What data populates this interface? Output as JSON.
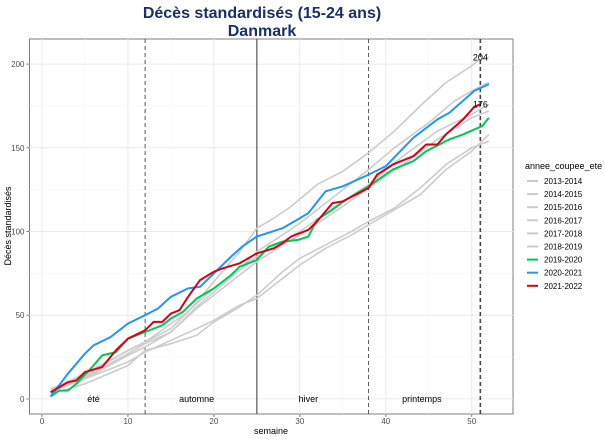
{
  "chart_data": {
    "type": "line",
    "title": "Décès standardisés (15-24 ans)",
    "subtitle": "Danmark",
    "xlabel": "semaine",
    "ylabel": "Décès standardisés",
    "xlim": [
      -1.45,
      54.8
    ],
    "ylim": [
      -9,
      215
    ],
    "xticks": [
      0,
      10,
      20,
      30,
      40,
      50
    ],
    "yticks": [
      0,
      50,
      100,
      150,
      200
    ],
    "grid": true,
    "legend": {
      "title": "annee_coupee_ete",
      "position": "right"
    },
    "vlines": [
      {
        "x": 12,
        "style": "dashed"
      },
      {
        "x": 25,
        "style": "solid"
      },
      {
        "x": 38,
        "style": "dashed"
      },
      {
        "x": 51,
        "style": "dashed"
      }
    ],
    "seasons": [
      {
        "label": "été",
        "x": 6
      },
      {
        "label": "automne",
        "x": 18
      },
      {
        "label": "hiver",
        "x": 31
      },
      {
        "label": "printemps",
        "x": 44.2
      }
    ],
    "annotations": [
      {
        "text": "204",
        "x": 51,
        "y": 204
      },
      {
        "text": "176",
        "x": 51,
        "y": 176
      }
    ],
    "series": [
      {
        "name": "2013-2014",
        "color": "#cccccc",
        "x": [
          1,
          6,
          12,
          17,
          20,
          23,
          25,
          27,
          29,
          32,
          35,
          38,
          41,
          44,
          47,
          50,
          51,
          52
        ],
        "y": [
          5,
          18,
          34,
          52,
          70,
          88,
          102,
          108,
          115,
          128,
          136,
          147,
          160,
          175,
          189,
          199,
          203,
          204
        ]
      },
      {
        "name": "2014-2015",
        "color": "#cccccc",
        "x": [
          1,
          5,
          10,
          12,
          15,
          18,
          20,
          23,
          25,
          28,
          30,
          35,
          38,
          41,
          45,
          48,
          50,
          52
        ],
        "y": [
          4,
          12,
          26,
          31,
          40,
          55,
          64,
          77,
          88,
          98,
          105,
          125,
          137,
          150,
          165,
          178,
          184,
          189
        ]
      },
      {
        "name": "2015-2016",
        "color": "#cccccc",
        "x": [
          1,
          5,
          10,
          12,
          15,
          18,
          20,
          23,
          25,
          28,
          30,
          35,
          38,
          42,
          46,
          50,
          52
        ],
        "y": [
          6,
          14,
          29,
          34,
          42,
          57,
          66,
          77,
          85,
          94,
          100,
          118,
          128,
          145,
          160,
          170,
          176
        ]
      },
      {
        "name": "2016-2017",
        "color": "#cccccc",
        "x": [
          1,
          5,
          10,
          12,
          15,
          18,
          20,
          23,
          25,
          28,
          30,
          35,
          38,
          42,
          46,
          50,
          52
        ],
        "y": [
          5,
          13,
          27,
          33,
          40,
          54,
          62,
          74,
          82,
          92,
          98,
          115,
          126,
          140,
          155,
          168,
          172
        ]
      },
      {
        "name": "2017-2018",
        "color": "#cccccc",
        "x": [
          1,
          5,
          10,
          12,
          15,
          18,
          20,
          23,
          25,
          28,
          30,
          33,
          36,
          38,
          41,
          44,
          47,
          50,
          52
        ],
        "y": [
          5,
          12,
          22,
          28,
          35,
          42,
          47,
          56,
          60,
          72,
          80,
          90,
          98,
          104,
          113,
          122,
          137,
          148,
          158
        ]
      },
      {
        "name": "2018-2019",
        "color": "#cccccc",
        "x": [
          1,
          5,
          10,
          12,
          15,
          18,
          20,
          23,
          25,
          28,
          30,
          33,
          36,
          38,
          41,
          44,
          47,
          50,
          52
        ],
        "y": [
          3,
          9,
          20,
          29,
          33,
          38,
          46,
          55,
          62,
          76,
          84,
          92,
          100,
          106,
          114,
          126,
          140,
          150,
          154
        ]
      },
      {
        "name": "2019-2020",
        "color": "#00c853",
        "x": [
          1,
          2,
          3,
          4,
          6,
          7,
          8.6,
          10,
          12,
          14,
          15,
          16.4,
          18,
          20,
          22,
          23,
          25,
          26.4,
          28,
          29.8,
          31,
          32,
          33.5,
          35.4,
          38,
          40.8,
          43.2,
          44.7,
          47.4,
          49,
          51.2,
          52
        ],
        "y": [
          1.4,
          5,
          5,
          9,
          20,
          26,
          28,
          36,
          40,
          44,
          48,
          52,
          60,
          66,
          74,
          79,
          83,
          91,
          94,
          95,
          97,
          107,
          112,
          119,
          127,
          137,
          142,
          148,
          155,
          158,
          163,
          168
        ]
      },
      {
        "name": "2020-2021",
        "color": "#2196f3",
        "x": [
          1,
          3,
          5,
          6,
          8,
          10,
          12,
          13.5,
          15,
          17,
          18.4,
          20,
          22,
          23.3,
          25,
          28,
          31,
          33,
          35,
          38,
          40,
          43.2,
          46,
          47.4,
          50.3,
          52
        ],
        "y": [
          1.4,
          15,
          27,
          32,
          37,
          45,
          50,
          54,
          61,
          66,
          67,
          75,
          85,
          91,
          97,
          102,
          111,
          124,
          127,
          134,
          139,
          156,
          167,
          171,
          184,
          188
        ]
      },
      {
        "name": "2021-2022",
        "color": "#d0021b",
        "x": [
          1,
          3,
          4,
          5,
          7,
          8.6,
          10,
          12,
          13,
          14,
          15,
          16,
          17,
          18.4,
          20,
          21,
          23,
          25,
          27,
          28,
          29,
          31,
          32,
          33.8,
          35,
          38,
          39,
          40.8,
          43.2,
          44.7,
          46,
          47,
          49,
          50.3,
          51
        ],
        "y": [
          4,
          10,
          11,
          16,
          19,
          29,
          36,
          41,
          46,
          46,
          51,
          53,
          61,
          71,
          76,
          78,
          81,
          87,
          90,
          93,
          97,
          101,
          106,
          117,
          118,
          126,
          134,
          140,
          145,
          152,
          152,
          158,
          167,
          174.5,
          176
        ]
      }
    ]
  }
}
